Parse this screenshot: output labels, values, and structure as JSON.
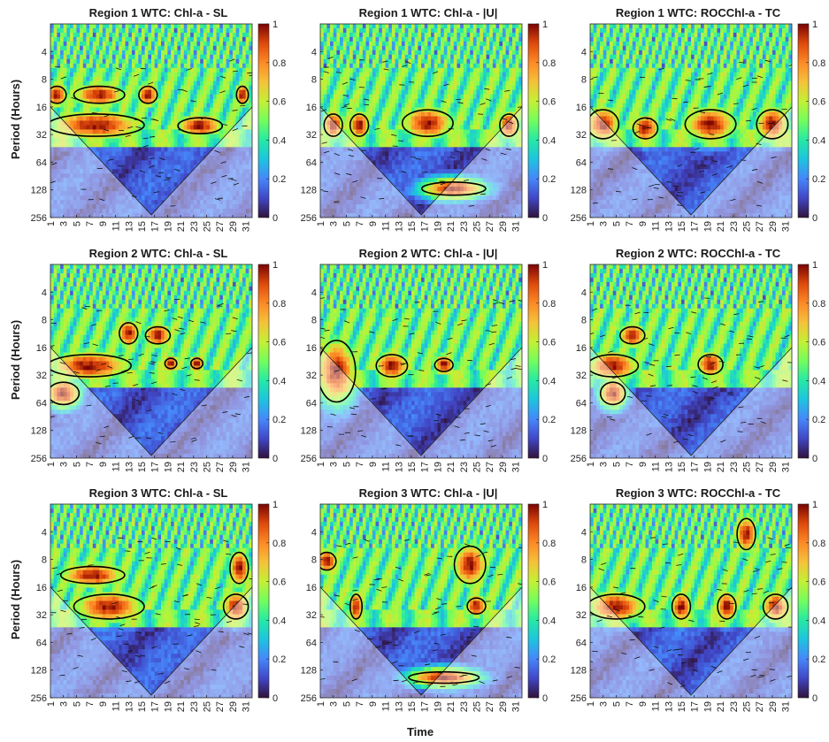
{
  "figure": {
    "shared_ylabel": "Period (Hours)",
    "shared_xlabel": "Time"
  },
  "chart_data": [
    {
      "type": "heatmap",
      "title": "Region 1 WTC: Chl-a - SL",
      "ylabel": "Period (Hours)",
      "x_ticks": [
        1,
        3,
        5,
        7,
        9,
        11,
        13,
        15,
        17,
        19,
        21,
        23,
        25,
        27,
        29,
        31
      ],
      "y_ticks": [
        4,
        8,
        16,
        32,
        64,
        128,
        256
      ],
      "y_scale": "log2",
      "colorbar_ticks": [
        0,
        0.2,
        0.4,
        0.6,
        0.8,
        1
      ],
      "clim": [
        0,
        1
      ],
      "significant_regions": [
        {
          "x": [
            1,
            3
          ],
          "period": [
            10,
            14
          ]
        },
        {
          "x": [
            5,
            12
          ],
          "period": [
            10,
            14
          ]
        },
        {
          "x": [
            15,
            17
          ],
          "period": [
            10,
            14
          ]
        },
        {
          "x": [
            30,
            31
          ],
          "period": [
            10,
            14
          ]
        },
        {
          "x": [
            1,
            15
          ],
          "period": [
            20,
            32
          ]
        },
        {
          "x": [
            21,
            27
          ],
          "period": [
            22,
            30
          ]
        }
      ]
    },
    {
      "type": "heatmap",
      "title": "Region 1 WTC: Chl-a - |U|",
      "x_ticks": [
        1,
        3,
        5,
        7,
        9,
        11,
        13,
        15,
        17,
        19,
        21,
        23,
        25,
        27,
        29,
        31
      ],
      "y_ticks": [
        4,
        8,
        16,
        32,
        64,
        128,
        256
      ],
      "y_scale": "log2",
      "colorbar_ticks": [
        0,
        0.2,
        0.4,
        0.6,
        0.8,
        1
      ],
      "clim": [
        0,
        1
      ],
      "significant_regions": [
        {
          "x": [
            2,
            4
          ],
          "period": [
            20,
            32
          ]
        },
        {
          "x": [
            6,
            8
          ],
          "period": [
            20,
            32
          ]
        },
        {
          "x": [
            14,
            21
          ],
          "period": [
            18,
            32
          ]
        },
        {
          "x": [
            29,
            31
          ],
          "period": [
            20,
            32
          ]
        },
        {
          "x": [
            17,
            26
          ],
          "period": [
            110,
            140
          ]
        }
      ]
    },
    {
      "type": "heatmap",
      "title": "Region 1 WTC: ROCChl-a - TC",
      "x_ticks": [
        1,
        3,
        5,
        7,
        9,
        11,
        13,
        15,
        17,
        19,
        21,
        23,
        25,
        27,
        29,
        31
      ],
      "y_ticks": [
        4,
        8,
        16,
        32,
        64,
        128,
        256
      ],
      "y_scale": "log2",
      "colorbar_ticks": [
        0,
        0.2,
        0.4,
        0.6,
        0.8,
        1
      ],
      "clim": [
        0,
        1
      ],
      "significant_regions": [
        {
          "x": [
            1,
            5
          ],
          "period": [
            18,
            34
          ]
        },
        {
          "x": [
            8,
            11
          ],
          "period": [
            22,
            34
          ]
        },
        {
          "x": [
            16,
            23
          ],
          "period": [
            18,
            34
          ]
        },
        {
          "x": [
            27,
            31
          ],
          "period": [
            18,
            34
          ]
        }
      ]
    },
    {
      "type": "heatmap",
      "title": "Region 2 WTC: Chl-a - SL",
      "ylabel": "Period (Hours)",
      "x_ticks": [
        1,
        3,
        5,
        7,
        9,
        11,
        13,
        15,
        17,
        19,
        21,
        23,
        25,
        27,
        29,
        31
      ],
      "y_ticks": [
        4,
        8,
        16,
        32,
        64,
        128,
        256
      ],
      "y_scale": "log2",
      "colorbar_ticks": [
        0,
        0.2,
        0.4,
        0.6,
        0.8,
        1
      ],
      "clim": [
        0,
        1
      ],
      "significant_regions": [
        {
          "x": [
            1,
            13
          ],
          "period": [
            20,
            32
          ]
        },
        {
          "x": [
            12,
            14
          ],
          "period": [
            9,
            14
          ]
        },
        {
          "x": [
            16,
            19
          ],
          "period": [
            10,
            14
          ]
        },
        {
          "x": [
            1,
            5
          ],
          "period": [
            40,
            64
          ]
        },
        {
          "x": [
            19,
            20
          ],
          "period": [
            22,
            26
          ]
        },
        {
          "x": [
            23,
            24
          ],
          "period": [
            22,
            26
          ]
        }
      ]
    },
    {
      "type": "heatmap",
      "title": "Region 2 WTC: Chl-a - |U|",
      "x_ticks": [
        1,
        3,
        5,
        7,
        9,
        11,
        13,
        15,
        17,
        19,
        21,
        23,
        25,
        27,
        29,
        31
      ],
      "y_ticks": [
        4,
        8,
        16,
        32,
        64,
        128,
        256
      ],
      "y_scale": "log2",
      "colorbar_ticks": [
        0,
        0.2,
        0.4,
        0.6,
        0.8,
        1
      ],
      "clim": [
        0,
        1
      ],
      "significant_regions": [
        {
          "x": [
            1,
            6
          ],
          "period": [
            14,
            60
          ]
        },
        {
          "x": [
            10,
            14
          ],
          "period": [
            20,
            32
          ]
        },
        {
          "x": [
            19,
            21
          ],
          "period": [
            22,
            28
          ]
        }
      ]
    },
    {
      "type": "heatmap",
      "title": "Region 2 WTC: ROCChl-a - TC",
      "x_ticks": [
        1,
        3,
        5,
        7,
        9,
        11,
        13,
        15,
        17,
        19,
        21,
        23,
        25,
        27,
        29,
        31
      ],
      "y_ticks": [
        4,
        8,
        16,
        32,
        64,
        128,
        256
      ],
      "y_scale": "log2",
      "colorbar_ticks": [
        0,
        0.2,
        0.4,
        0.6,
        0.8,
        1
      ],
      "clim": [
        0,
        1
      ],
      "significant_regions": [
        {
          "x": [
            1,
            8
          ],
          "period": [
            20,
            32
          ]
        },
        {
          "x": [
            6,
            9
          ],
          "period": [
            10,
            14
          ]
        },
        {
          "x": [
            18,
            21
          ],
          "period": [
            20,
            30
          ]
        },
        {
          "x": [
            3,
            6
          ],
          "period": [
            40,
            64
          ]
        }
      ]
    },
    {
      "type": "heatmap",
      "title": "Region 3 WTC: Chl-a - SL",
      "ylabel": "Period (Hours)",
      "x_ticks": [
        1,
        3,
        5,
        7,
        9,
        11,
        13,
        15,
        17,
        19,
        21,
        23,
        25,
        27,
        29,
        31
      ],
      "y_ticks": [
        4,
        8,
        16,
        32,
        64,
        128,
        256
      ],
      "y_scale": "log2",
      "colorbar_ticks": [
        0,
        0.2,
        0.4,
        0.6,
        0.8,
        1
      ],
      "clim": [
        0,
        1
      ],
      "significant_regions": [
        {
          "x": [
            3,
            12
          ],
          "period": [
            10,
            14
          ]
        },
        {
          "x": [
            5,
            15
          ],
          "period": [
            20,
            34
          ]
        },
        {
          "x": [
            29,
            31
          ],
          "period": [
            7,
            14
          ]
        },
        {
          "x": [
            28,
            31
          ],
          "period": [
            20,
            34
          ]
        }
      ]
    },
    {
      "type": "heatmap",
      "title": "Region 3 WTC: Chl-a - |U|",
      "x_ticks": [
        1,
        3,
        5,
        7,
        9,
        11,
        13,
        15,
        17,
        19,
        21,
        23,
        25,
        27,
        29,
        31
      ],
      "y_ticks": [
        4,
        8,
        16,
        32,
        64,
        128,
        256
      ],
      "y_scale": "log2",
      "colorbar_ticks": [
        0,
        0.2,
        0.4,
        0.6,
        0.8,
        1
      ],
      "clim": [
        0,
        1
      ],
      "significant_regions": [
        {
          "x": [
            1,
            3
          ],
          "period": [
            7,
            10
          ]
        },
        {
          "x": [
            6,
            7
          ],
          "period": [
            20,
            34
          ]
        },
        {
          "x": [
            22,
            26
          ],
          "period": [
            6,
            14
          ]
        },
        {
          "x": [
            24,
            26
          ],
          "period": [
            22,
            30
          ]
        },
        {
          "x": [
            15,
            25
          ],
          "period": [
            140,
            170
          ]
        }
      ]
    },
    {
      "type": "heatmap",
      "title": "Region 3 WTC: ROCChl-a - TC",
      "x_ticks": [
        1,
        3,
        5,
        7,
        9,
        11,
        13,
        15,
        17,
        19,
        21,
        23,
        25,
        27,
        29,
        31
      ],
      "y_ticks": [
        4,
        8,
        16,
        32,
        64,
        128,
        256
      ],
      "y_scale": "log2",
      "colorbar_ticks": [
        0,
        0.2,
        0.4,
        0.6,
        0.8,
        1
      ],
      "clim": [
        0,
        1
      ],
      "significant_regions": [
        {
          "x": [
            1,
            9
          ],
          "period": [
            20,
            34
          ]
        },
        {
          "x": [
            14,
            16
          ],
          "period": [
            20,
            34
          ]
        },
        {
          "x": [
            21,
            23
          ],
          "period": [
            20,
            34
          ]
        },
        {
          "x": [
            28,
            31
          ],
          "period": [
            20,
            34
          ]
        },
        {
          "x": [
            24,
            26
          ],
          "period": [
            3,
            6
          ]
        }
      ]
    }
  ]
}
